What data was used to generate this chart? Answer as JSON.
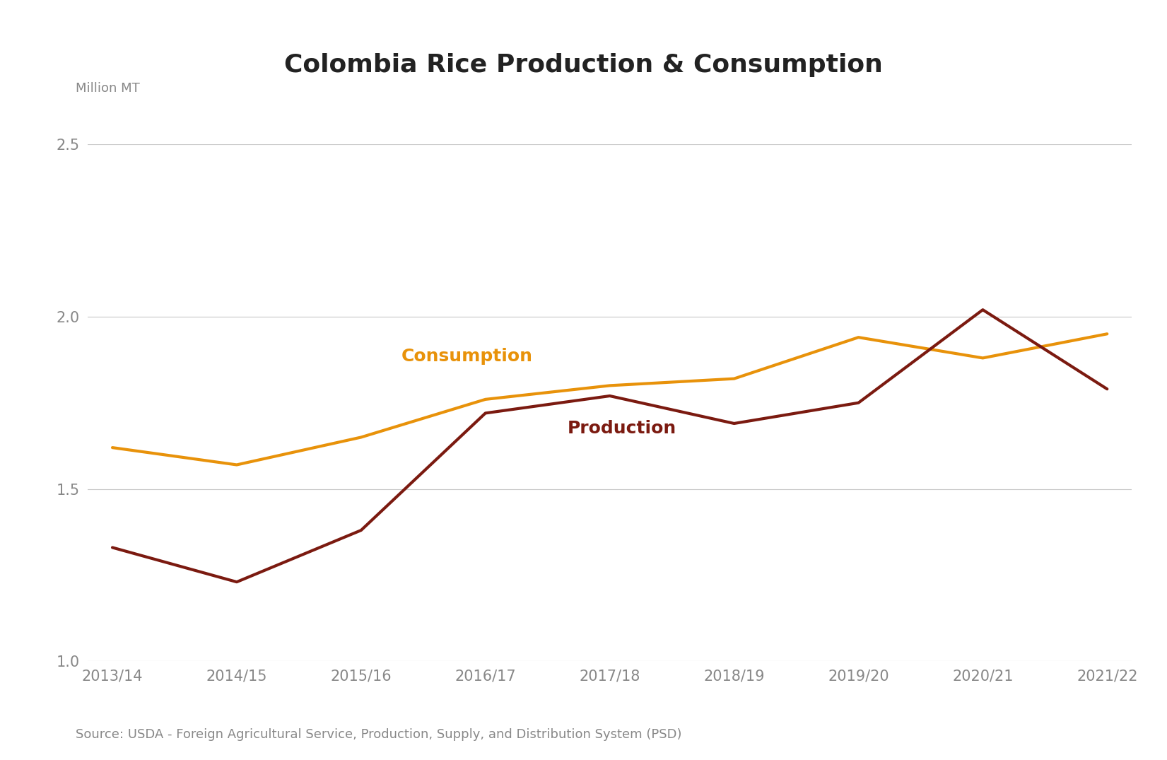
{
  "title": "Colombia Rice Production & Consumption",
  "ylabel": "Million MT",
  "source": "Source: USDA - Foreign Agricultural Service, Production, Supply, and Distribution System (PSD)",
  "x_labels": [
    "2013/14",
    "2014/15",
    "2015/16",
    "2016/17",
    "2017/18",
    "2018/19",
    "2019/20",
    "2020/21",
    "2021/22"
  ],
  "consumption": [
    1.62,
    1.57,
    1.65,
    1.76,
    1.8,
    1.82,
    1.94,
    1.88,
    1.95
  ],
  "production": [
    1.33,
    1.23,
    1.38,
    1.72,
    1.77,
    1.69,
    1.75,
    2.02,
    1.79
  ],
  "consumption_color": "#E8920A",
  "production_color": "#7B1A10",
  "line_width": 3.0,
  "ylim": [
    1.0,
    2.5
  ],
  "yticks": [
    1.0,
    1.5,
    2.0,
    2.5
  ],
  "grid_color": "#C8C8C8",
  "background_color": "#FFFFFF",
  "title_fontsize": 26,
  "million_mt_fontsize": 13,
  "tick_fontsize": 15,
  "annotation_fontsize": 18,
  "source_fontsize": 13,
  "tick_color": "#888888",
  "text_color": "#888888"
}
